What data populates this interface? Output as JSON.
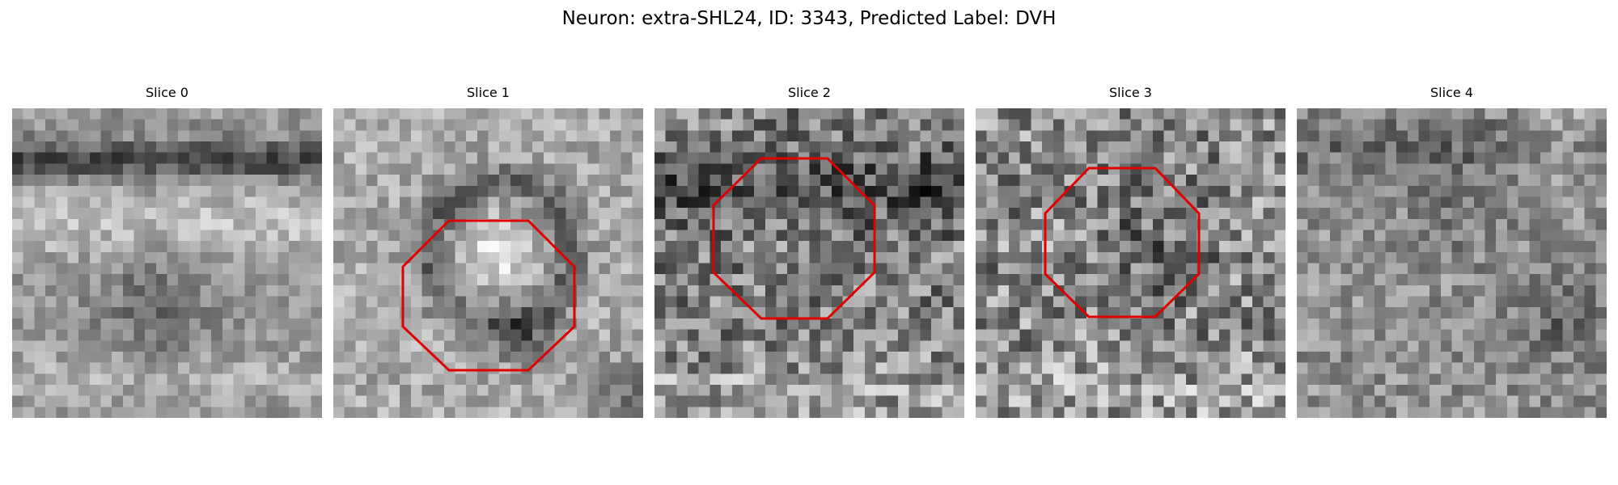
{
  "figure": {
    "title": "Neuron: extra-SHL24, ID: 3343, Predicted Label: DVH"
  },
  "panels": [
    {
      "title": "Slice 0",
      "roi_outline": false
    },
    {
      "title": "Slice 1",
      "roi_outline": true
    },
    {
      "title": "Slice 2",
      "roi_outline": true
    },
    {
      "title": "Slice 3",
      "roi_outline": true
    },
    {
      "title": "Slice 4",
      "roi_outline": false
    }
  ],
  "colors": {
    "roi_outline": "#e00000",
    "colormap": "gray"
  }
}
